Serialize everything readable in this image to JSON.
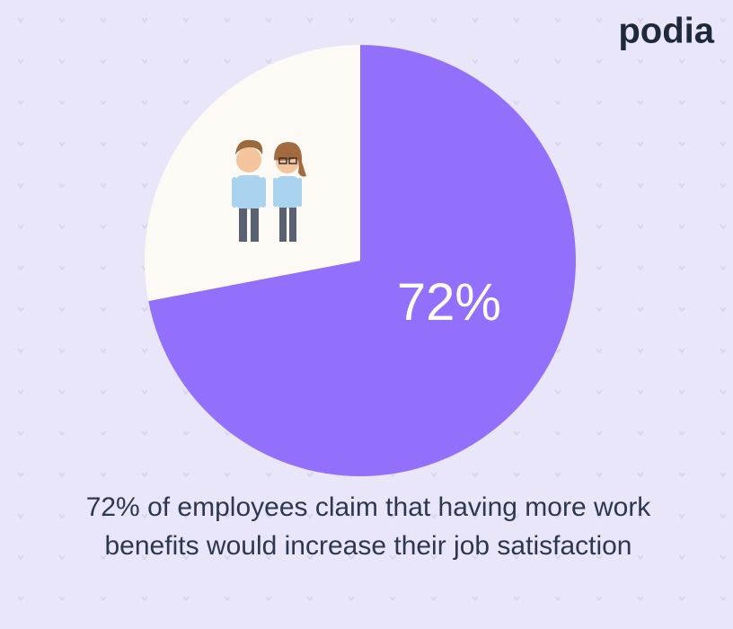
{
  "brand": "podia",
  "chart_data": {
    "type": "pie",
    "categories": [
      null,
      null
    ],
    "values": [
      72,
      28
    ],
    "value_labels": [
      "72%",
      null
    ],
    "colors": [
      "#9270fb",
      "#fdfaf5"
    ],
    "start_angle": -90,
    "direction": "clockwise"
  },
  "caption": [
    "72% of employees claim that having more work",
    "benefits would increase their job satisfaction"
  ]
}
